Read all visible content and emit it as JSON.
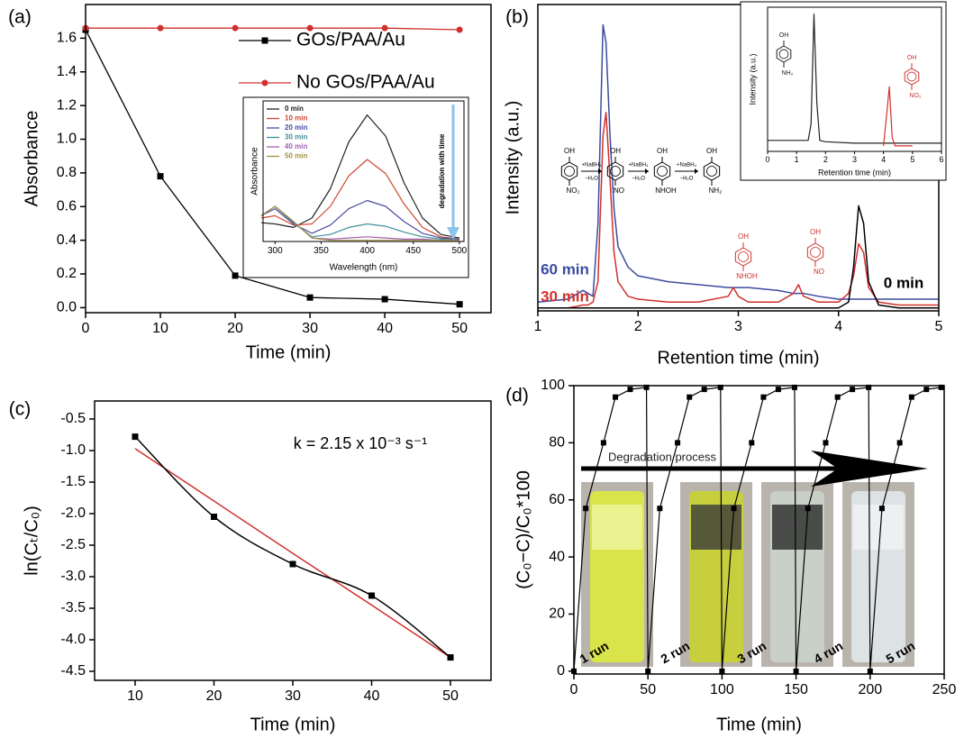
{
  "chart_data": [
    {
      "type": "line",
      "label": "(a)",
      "xlabel": "Time (min)",
      "ylabel": "Absorbance",
      "x": [
        0,
        10,
        20,
        30,
        40,
        50
      ],
      "series": [
        {
          "name": "GOs/PAA/Au",
          "color": "#000000",
          "marker": "square",
          "values": [
            1.65,
            0.78,
            0.19,
            0.06,
            0.05,
            0.02
          ]
        },
        {
          "name": "No GOs/PAA/Au",
          "color": "#d0312d",
          "marker": "circle",
          "values": [
            1.66,
            1.66,
            1.66,
            1.66,
            1.66,
            1.65
          ]
        }
      ],
      "xlim": [
        0,
        54.2
      ],
      "xticks": [
        0,
        10,
        20,
        30,
        40,
        50
      ],
      "ylim": [
        -0.03,
        1.8
      ],
      "yticks": [
        {
          "value": 0,
          "label": "0.0"
        },
        0.2,
        0.4,
        0.6,
        0.8,
        {
          "value": 1,
          "label": "1.0"
        },
        1.2,
        1.4,
        1.6
      ],
      "legend": true
    },
    {
      "type": "line",
      "xlabel": "Wavelength (nm)",
      "ylabel": "Absorbance",
      "annotation": "degradation with time",
      "x": [
        285,
        300,
        320,
        340,
        360,
        380,
        400,
        420,
        440,
        460,
        480,
        500
      ],
      "series": [
        {
          "name": "0 min",
          "color": "#222222",
          "values": [
            0.16,
            0.15,
            0.12,
            0.2,
            0.45,
            0.85,
            1.08,
            0.9,
            0.5,
            0.2,
            0.06,
            0.03
          ]
        },
        {
          "name": "10 min",
          "color": "#d0452f",
          "values": [
            0.2,
            0.22,
            0.14,
            0.15,
            0.3,
            0.56,
            0.7,
            0.58,
            0.32,
            0.12,
            0.04,
            0.02
          ]
        },
        {
          "name": "20 min",
          "color": "#4a4aa0",
          "values": [
            0.22,
            0.28,
            0.15,
            0.07,
            0.14,
            0.28,
            0.35,
            0.3,
            0.17,
            0.07,
            0.03,
            0.02
          ]
        },
        {
          "name": "30 min",
          "color": "#3f8f9a",
          "values": [
            0.22,
            0.3,
            0.16,
            0.04,
            0.06,
            0.12,
            0.15,
            0.13,
            0.08,
            0.04,
            0.02,
            0.01
          ]
        },
        {
          "name": "40 min",
          "color": "#a060b0",
          "values": [
            0.22,
            0.3,
            0.17,
            0.03,
            0.02,
            0.03,
            0.04,
            0.03,
            0.02,
            0.02,
            0.01,
            0.01
          ]
        },
        {
          "name": "50 min",
          "color": "#a09040",
          "values": [
            0.22,
            0.3,
            0.17,
            0.03,
            0.01,
            0.01,
            0.01,
            0.01,
            0.01,
            0.01,
            0.01,
            0.01
          ]
        }
      ],
      "xlim": [
        287,
        505
      ],
      "xticks": [
        300,
        350,
        400,
        450,
        500
      ],
      "ylim": [
        0,
        1.2
      ],
      "legend": true
    },
    {
      "type": "line",
      "label": "(b)",
      "xlabel": "Retention time (min)",
      "ylabel": "Intensity (a.u.)",
      "x": [
        1.0,
        1.3,
        1.45,
        1.5,
        1.55,
        1.6,
        1.65,
        1.68,
        1.72,
        1.76,
        1.8,
        1.9,
        2.0,
        2.3,
        2.6,
        2.9,
        2.95,
        3.0,
        3.1,
        3.4,
        3.55,
        3.6,
        3.65,
        3.8,
        4.0,
        4.1,
        4.15,
        4.2,
        4.25,
        4.3,
        4.4,
        4.6,
        5.0
      ],
      "series": [
        {
          "name": "60 min",
          "color": "#3b4ba0",
          "values": [
            3,
            4,
            7,
            6,
            5,
            30,
            98,
            92,
            60,
            35,
            22,
            15,
            12,
            10,
            9,
            8,
            8,
            8,
            8,
            7,
            6,
            6,
            6,
            5,
            4,
            4,
            4,
            4,
            4,
            4,
            4,
            4,
            4
          ]
        },
        {
          "name": "30 min",
          "color": "#d0312d",
          "values": [
            1,
            1,
            2,
            2,
            3,
            10,
            60,
            68,
            45,
            20,
            10,
            5,
            4,
            3,
            3,
            5,
            8,
            5,
            3,
            3,
            6,
            9,
            5,
            3,
            3,
            6,
            12,
            23,
            20,
            8,
            3,
            2,
            2
          ]
        },
        {
          "name": "0 min",
          "color": "#000000",
          "values": [
            1,
            1,
            1,
            1,
            1,
            1,
            1,
            1,
            1,
            1,
            1,
            1,
            1,
            1,
            1,
            1,
            1,
            1,
            1,
            1,
            1,
            1,
            1,
            1,
            1,
            3,
            15,
            36,
            30,
            10,
            2,
            1,
            1
          ]
        }
      ],
      "xlim": [
        1,
        5
      ],
      "xticks": [
        1,
        2,
        3,
        4,
        5
      ],
      "ylim": [
        0,
        105
      ],
      "structures": [
        {
          "top": "OH",
          "bottom": "NO₂"
        },
        {
          "top": "OH",
          "bottom": "NO"
        },
        {
          "top": "OH",
          "bottom": "NHOH"
        },
        {
          "top": "OH",
          "bottom": "NH₂"
        }
      ],
      "reagent": "+NaBH₄",
      "byproduct": "−H₂O",
      "peak_structures": [
        {
          "top": "OH",
          "bottom": "NHOH"
        },
        {
          "top": "OH",
          "bottom": "NO"
        }
      ]
    },
    {
      "type": "line",
      "xlabel": "Retention time (min)",
      "ylabel": "Intensity (a.u.)",
      "x": [
        0,
        0.5,
        1,
        1.4,
        1.5,
        1.6,
        1.7,
        1.8,
        2,
        3,
        4,
        4.1,
        4.2,
        4.3,
        4.4,
        5,
        6
      ],
      "series": [
        {
          "color": "#222222",
          "values": [
            8,
            8,
            8,
            8,
            20,
            100,
            35,
            8,
            7,
            6,
            6,
            6,
            6,
            6,
            6,
            6,
            6
          ]
        },
        {
          "color": "#d0312d",
          "values": [
            null,
            null,
            null,
            null,
            null,
            null,
            null,
            null,
            null,
            null,
            4,
            25,
            47,
            10,
            4,
            4,
            null
          ]
        }
      ],
      "xlim": [
        0,
        6
      ],
      "xticks": [
        0,
        1,
        2,
        3,
        4,
        5,
        6
      ],
      "ylim": [
        0,
        105
      ],
      "structures": [
        {
          "top": "OH",
          "bottom": "NH₂"
        },
        {
          "top": "OH",
          "bottom": "NO₂"
        }
      ]
    },
    {
      "type": "line",
      "label": "(c)",
      "xlabel": "Time (min)",
      "ylabel": "ln(Cₜ/C₀)",
      "annotation": "k = 2.15 x 10⁻³ s⁻¹",
      "x": [
        10,
        20,
        30,
        40,
        50
      ],
      "series": [
        {
          "color": "#d0312d",
          "values": [
            -0.97,
            -1.8,
            -2.63,
            -3.45,
            -4.28
          ]
        },
        {
          "color": "#000000",
          "marker": "square",
          "smooth": true,
          "values": [
            -0.78,
            -2.05,
            -2.8,
            -3.3,
            -4.28
          ]
        }
      ],
      "xlim": [
        4.86,
        55.14
      ],
      "xticks": [
        10,
        20,
        30,
        40,
        50
      ],
      "ylim": [
        -4.643,
        -0.214
      ],
      "yticks": [
        -0.5,
        {
          "value": -1,
          "label": "-1.0"
        },
        -1.5,
        {
          "value": -2,
          "label": "-2.0"
        },
        -2.5,
        {
          "value": -3,
          "label": "-3.0"
        },
        -3.5,
        {
          "value": -4,
          "label": "-4.0"
        },
        -4.5
      ]
    },
    {
      "type": "line",
      "label": "(d)",
      "xlabel": "Time (min)",
      "ylabel": "(C₀−C)/C₀*100",
      "annotation": "Degradation process",
      "run_labels": [
        "1 run",
        "2 run",
        "3 run",
        "4 run",
        "5 run"
      ],
      "x": [
        0,
        8,
        20,
        28,
        38,
        49,
        50,
        58,
        70,
        78,
        88,
        99,
        100,
        108,
        120,
        128,
        138,
        149,
        150,
        158,
        170,
        178,
        188,
        199,
        200,
        208,
        220,
        228,
        238,
        248
      ],
      "series": [
        {
          "color": "#000000",
          "marker": "square",
          "values": [
            0,
            57,
            80,
            96,
            98.7,
            99.4,
            0,
            57,
            80,
            96,
            98.7,
            99.4,
            0,
            57,
            80,
            96,
            98.7,
            99.4,
            0,
            57,
            80,
            96,
            98.7,
            99.4,
            0,
            57,
            80,
            96,
            98.7,
            99.4
          ]
        }
      ],
      "xlim": [
        0,
        250
      ],
      "xticks": [
        0,
        50,
        100,
        150,
        200,
        250
      ],
      "ylim": [
        -1,
        100
      ],
      "yticks": [
        0,
        20,
        40,
        60,
        80,
        100
      ]
    }
  ]
}
